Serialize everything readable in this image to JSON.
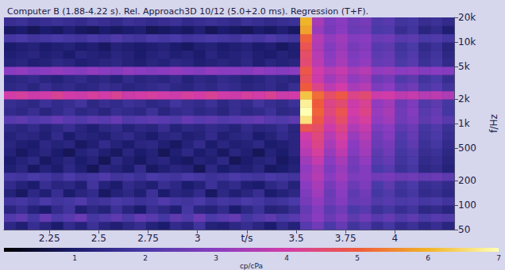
{
  "chart_data": {
    "type": "heatmap",
    "title": "Computer B (1.88-4.22 s). Rel. Approach3D 10/12 (5.0+2.0 ms). Regression (T+F).",
    "xlim": [
      2.02,
      4.3
    ],
    "xticks": [
      2.25,
      2.5,
      2.75,
      3,
      {
        "value": 3.25,
        "label": "t/s"
      },
      3.5,
      3.75,
      4
    ],
    "ylim": [
      50,
      20000
    ],
    "yticks": [
      50,
      100,
      200,
      500,
      {
        "value": 1000,
        "label": "1k"
      },
      {
        "value": 2000,
        "label": "2k"
      },
      {
        "value": 5000,
        "label": "5k"
      },
      {
        "value": 10000,
        "label": "10k"
      },
      {
        "value": 20000,
        "label": "20k"
      }
    ],
    "ylabel": "f/Hz",
    "log": "y",
    "grid": false,
    "x_edges": [
      2.02,
      2.08,
      2.14,
      2.2,
      2.26,
      2.32,
      2.38,
      2.44,
      2.5,
      2.56,
      2.62,
      2.68,
      2.74,
      2.8,
      2.86,
      2.92,
      2.98,
      3.04,
      3.1,
      3.16,
      3.22,
      3.28,
      3.34,
      3.4,
      3.46,
      3.52,
      3.58,
      3.64,
      3.7,
      3.76,
      3.82,
      3.88,
      3.94,
      4.0,
      4.06,
      4.12,
      4.18,
      4.24,
      4.3
    ],
    "y_edges": [
      50,
      63,
      79,
      100,
      126,
      158,
      200,
      251,
      316,
      398,
      500,
      630,
      794,
      1000,
      1259,
      1585,
      1995,
      2512,
      3162,
      3981,
      5012,
      6310,
      7943,
      10000,
      12589,
      15849,
      20000
    ],
    "values": [
      [
        1.4,
        1.1,
        1.6,
        1.3,
        1.0,
        1.5,
        1.2,
        1.7,
        1.3,
        1.1,
        1.4,
        1.6,
        1.2,
        1.0,
        1.5,
        1.3,
        1.8,
        1.2,
        1.1,
        1.4,
        1.6,
        1.3,
        1.0,
        1.5,
        1.2,
        2.2,
        2.6,
        2.0,
        2.4,
        1.8,
        2.1,
        1.6,
        1.9,
        1.5,
        1.7,
        1.4,
        1.6,
        1.3
      ],
      [
        2.1,
        2.3,
        1.9,
        2.4,
        2.0,
        2.2,
        2.5,
        1.9,
        2.1,
        2.3,
        2.0,
        2.4,
        2.2,
        1.9,
        2.3,
        2.1,
        2.5,
        2.0,
        2.2,
        2.4,
        1.9,
        2.1,
        2.3,
        2.0,
        2.2,
        2.6,
        3.0,
        2.5,
        2.8,
        2.3,
        2.6,
        2.2,
        2.4,
        2.1,
        2.3,
        2.0,
        2.2,
        2.1
      ],
      [
        1.3,
        1.6,
        1.2,
        1.0,
        1.5,
        1.8,
        1.1,
        1.4,
        1.2,
        1.7,
        1.3,
        1.0,
        1.6,
        1.4,
        1.1,
        1.9,
        1.3,
        1.2,
        1.5,
        1.0,
        1.4,
        1.7,
        1.2,
        1.3,
        1.6,
        2.4,
        2.9,
        2.3,
        2.6,
        2.0,
        2.2,
        1.7,
        1.9,
        1.6,
        1.8,
        1.4,
        1.5,
        1.3
      ],
      [
        1.8,
        1.9,
        1.7,
        2.0,
        1.8,
        1.9,
        2.1,
        1.7,
        1.8,
        2.0,
        1.9,
        1.7,
        1.8,
        2.1,
        1.9,
        1.8,
        2.0,
        1.7,
        1.9,
        1.8,
        2.0,
        1.9,
        1.7,
        1.8,
        2.0,
        2.7,
        3.1,
        2.6,
        2.9,
        2.4,
        2.5,
        2.1,
        2.2,
        2.0,
        2.1,
        1.9,
        2.0,
        1.8
      ],
      [
        1.2,
        0.9,
        1.4,
        1.1,
        1.6,
        1.0,
        1.3,
        1.5,
        0.9,
        1.2,
        1.4,
        1.1,
        1.7,
        1.0,
        1.3,
        1.2,
        1.5,
        0.9,
        1.4,
        1.1,
        1.3,
        1.6,
        1.0,
        1.2,
        1.4,
        2.8,
        3.3,
        2.5,
        3.0,
        2.3,
        2.6,
        1.9,
        2.1,
        1.7,
        1.9,
        1.5,
        1.6,
        1.4
      ],
      [
        1.5,
        1.2,
        1.0,
        1.6,
        1.3,
        1.4,
        1.1,
        1.8,
        1.2,
        1.0,
        1.5,
        1.3,
        1.1,
        1.6,
        1.4,
        1.0,
        1.2,
        1.7,
        1.3,
        1.5,
        1.1,
        1.0,
        1.4,
        1.6,
        1.2,
        3.0,
        3.4,
        2.7,
        3.1,
        2.5,
        2.8,
        2.0,
        2.3,
        1.8,
        2.0,
        1.6,
        1.7,
        1.5
      ],
      [
        1.9,
        1.8,
        2.0,
        1.9,
        1.7,
        2.0,
        1.8,
        1.9,
        2.1,
        1.8,
        1.9,
        1.7,
        2.0,
        1.9,
        1.8,
        2.0,
        1.9,
        1.7,
        1.8,
        2.0,
        1.9,
        1.8,
        2.0,
        1.9,
        1.8,
        3.2,
        3.6,
        3.0,
        3.3,
        2.8,
        2.9,
        2.6,
        2.7,
        2.5,
        2.6,
        2.4,
        2.5,
        2.3
      ],
      [
        1.1,
        1.3,
        0.9,
        1.2,
        1.0,
        1.4,
        1.1,
        0.8,
        1.3,
        1.2,
        1.0,
        1.5,
        0.9,
        1.1,
        1.3,
        1.2,
        0.8,
        1.4,
        1.0,
        1.2,
        1.1,
        1.3,
        0.9,
        1.0,
        1.2,
        3.1,
        3.5,
        2.8,
        3.2,
        2.6,
        2.9,
        2.0,
        2.2,
        1.7,
        1.9,
        1.4,
        1.5,
        1.2
      ],
      [
        1.0,
        1.2,
        1.4,
        0.9,
        1.1,
        1.3,
        1.0,
        1.2,
        0.8,
        1.4,
        1.1,
        0.9,
        1.2,
        1.3,
        1.0,
        0.9,
        1.2,
        1.1,
        1.4,
        0.8,
        1.0,
        1.2,
        1.3,
        0.9,
        1.1,
        3.3,
        3.8,
        3.0,
        3.4,
        2.7,
        3.1,
        2.2,
        2.4,
        1.8,
        2.0,
        1.5,
        1.6,
        1.3
      ],
      [
        1.2,
        0.9,
        1.1,
        1.3,
        1.0,
        0.8,
        1.2,
        1.4,
        1.1,
        0.9,
        1.3,
        1.0,
        1.2,
        0.8,
        1.1,
        1.4,
        1.0,
        1.2,
        0.9,
        1.3,
        1.1,
        0.8,
        1.2,
        1.0,
        1.3,
        3.6,
        4.1,
        3.2,
        3.7,
        2.9,
        3.3,
        2.3,
        2.6,
        1.9,
        2.1,
        1.6,
        1.7,
        1.4
      ],
      [
        1.3,
        1.1,
        1.0,
        1.4,
        1.2,
        1.3,
        0.9,
        1.1,
        1.5,
        1.2,
        1.0,
        1.3,
        1.4,
        1.1,
        0.9,
        1.2,
        1.5,
        1.0,
        1.3,
        1.1,
        1.2,
        1.4,
        1.0,
        1.1,
        1.3,
        3.8,
        4.3,
        3.4,
        3.9,
        3.0,
        3.4,
        2.5,
        2.7,
        2.0,
        2.3,
        1.7,
        1.9,
        1.5
      ],
      [
        1.2,
        1.4,
        1.3,
        1.1,
        1.5,
        1.0,
        1.3,
        1.2,
        1.1,
        1.4,
        1.5,
        1.2,
        1.0,
        1.3,
        1.4,
        1.1,
        1.2,
        1.5,
        1.1,
        1.3,
        1.4,
        1.0,
        1.2,
        1.5,
        1.3,
        4.0,
        4.4,
        3.6,
        4.1,
        3.2,
        3.6,
        2.6,
        2.9,
        2.1,
        2.4,
        1.8,
        2.0,
        1.6
      ],
      [
        1.4,
        1.3,
        1.5,
        1.2,
        1.4,
        1.6,
        1.3,
        1.1,
        1.4,
        1.5,
        1.2,
        1.4,
        1.3,
        1.6,
        1.2,
        1.4,
        1.3,
        1.5,
        1.4,
        1.2,
        1.5,
        1.3,
        1.4,
        1.6,
        1.3,
        4.8,
        4.6,
        3.9,
        4.3,
        3.5,
        3.8,
        2.8,
        3.0,
        2.3,
        2.5,
        1.9,
        2.1,
        1.7
      ],
      [
        2.2,
        2.3,
        2.1,
        2.2,
        2.4,
        2.2,
        2.1,
        2.3,
        2.2,
        2.4,
        2.1,
        2.2,
        2.3,
        2.2,
        2.1,
        2.4,
        2.2,
        2.3,
        2.1,
        2.2,
        2.3,
        2.4,
        2.2,
        2.1,
        2.3,
        6.6,
        4.9,
        4.2,
        4.6,
        3.8,
        4.1,
        3.1,
        3.3,
        2.6,
        2.8,
        2.3,
        2.5,
        2.2
      ],
      [
        1.5,
        1.4,
        1.6,
        1.3,
        1.5,
        1.7,
        1.4,
        1.5,
        1.3,
        1.6,
        1.5,
        1.4,
        1.7,
        1.3,
        1.5,
        1.6,
        1.4,
        1.5,
        1.3,
        1.6,
        1.4,
        1.5,
        1.7,
        1.4,
        1.5,
        7.0,
        5.1,
        4.4,
        4.8,
        4.0,
        4.3,
        3.2,
        3.4,
        2.6,
        2.9,
        2.2,
        2.4,
        1.9
      ],
      [
        1.6,
        1.5,
        1.4,
        1.7,
        1.5,
        1.6,
        1.8,
        1.4,
        1.6,
        1.5,
        1.7,
        1.6,
        1.4,
        1.5,
        1.8,
        1.6,
        1.5,
        1.7,
        1.4,
        1.6,
        1.5,
        1.8,
        1.6,
        1.5,
        1.7,
        6.8,
        5.0,
        4.3,
        4.5,
        3.9,
        4.2,
        3.1,
        3.3,
        2.5,
        2.8,
        2.1,
        2.3,
        1.9
      ],
      [
        4.0,
        4.1,
        3.9,
        4.0,
        4.2,
        4.0,
        3.9,
        4.1,
        4.0,
        4.2,
        3.9,
        4.0,
        4.1,
        4.0,
        3.9,
        4.1,
        4.0,
        4.2,
        4.0,
        3.9,
        4.1,
        4.0,
        4.2,
        3.9,
        4.0,
        6.2,
        5.2,
        4.6,
        4.9,
        4.3,
        4.5,
        3.9,
        4.0,
        3.7,
        3.8,
        3.6,
        3.7,
        3.5
      ],
      [
        1.4,
        1.5,
        1.3,
        1.6,
        1.4,
        1.5,
        1.3,
        1.4,
        1.6,
        1.5,
        1.3,
        1.4,
        1.5,
        1.6,
        1.4,
        1.3,
        1.5,
        1.4,
        1.6,
        1.5,
        1.3,
        1.4,
        1.5,
        1.3,
        1.6,
        5.0,
        4.3,
        3.7,
        4.0,
        3.4,
        3.6,
        2.8,
        3.0,
        2.4,
        2.6,
        2.0,
        2.2,
        1.8
      ],
      [
        1.3,
        1.4,
        1.5,
        1.3,
        1.2,
        1.4,
        1.5,
        1.3,
        1.4,
        1.2,
        1.5,
        1.3,
        1.4,
        1.3,
        1.5,
        1.2,
        1.4,
        1.3,
        1.5,
        1.4,
        1.2,
        1.3,
        1.5,
        1.4,
        1.3,
        4.7,
        3.9,
        3.3,
        3.6,
        3.1,
        3.3,
        2.5,
        2.7,
        2.1,
        2.3,
        1.8,
        2.0,
        1.6
      ],
      [
        3.0,
        3.1,
        2.9,
        3.0,
        3.1,
        3.0,
        2.9,
        3.1,
        3.0,
        2.9,
        3.1,
        3.0,
        2.9,
        3.0,
        3.1,
        3.0,
        2.9,
        3.1,
        3.0,
        3.0,
        2.9,
        3.1,
        3.0,
        2.9,
        3.0,
        4.9,
        4.0,
        3.6,
        3.8,
        3.4,
        3.6,
        3.1,
        3.2,
        3.0,
        3.1,
        2.9,
        3.0,
        2.9
      ],
      [
        1.2,
        1.3,
        1.1,
        1.2,
        1.4,
        1.3,
        1.1,
        1.2,
        1.3,
        1.4,
        1.2,
        1.1,
        1.3,
        1.2,
        1.4,
        1.3,
        1.1,
        1.2,
        1.3,
        1.2,
        1.4,
        1.1,
        1.3,
        1.2,
        1.3,
        4.5,
        3.7,
        3.1,
        3.4,
        2.9,
        3.1,
        2.4,
        2.5,
        2.0,
        2.2,
        1.7,
        1.9,
        1.5
      ],
      [
        1.1,
        1.2,
        1.3,
        1.1,
        1.2,
        1.0,
        1.3,
        1.2,
        1.1,
        1.3,
        1.2,
        1.0,
        1.2,
        1.3,
        1.1,
        1.2,
        1.0,
        1.3,
        1.1,
        1.2,
        1.3,
        1.1,
        1.0,
        1.2,
        1.1,
        4.6,
        3.6,
        3.0,
        3.3,
        2.8,
        3.0,
        2.3,
        2.4,
        1.9,
        2.1,
        1.6,
        1.8,
        1.4
      ],
      [
        1.0,
        1.1,
        1.2,
        1.0,
        1.1,
        1.2,
        1.0,
        1.1,
        0.9,
        1.2,
        1.1,
        1.0,
        1.1,
        1.2,
        1.0,
        0.9,
        1.1,
        1.2,
        1.0,
        1.1,
        1.2,
        1.0,
        1.1,
        0.9,
        1.1,
        4.8,
        3.5,
        2.9,
        3.2,
        2.7,
        2.9,
        2.2,
        2.3,
        1.8,
        2.0,
        1.5,
        1.7,
        1.3
      ],
      [
        1.9,
        2.0,
        1.8,
        1.9,
        2.0,
        1.9,
        1.8,
        2.0,
        1.9,
        2.1,
        1.9,
        1.8,
        2.0,
        1.9,
        2.0,
        1.8,
        1.9,
        2.0,
        1.9,
        1.8,
        2.0,
        1.9,
        2.1,
        1.9,
        1.8,
        5.1,
        3.6,
        3.1,
        3.3,
        2.9,
        3.0,
        2.5,
        2.6,
        2.2,
        2.3,
        2.0,
        2.1,
        1.9
      ],
      [
        0.9,
        1.0,
        0.8,
        1.0,
        0.9,
        1.1,
        0.9,
        0.8,
        1.0,
        0.9,
        1.0,
        1.1,
        0.8,
        0.9,
        1.0,
        0.9,
        1.1,
        0.8,
        1.0,
        0.9,
        0.8,
        1.0,
        0.9,
        1.1,
        0.9,
        5.8,
        3.2,
        2.7,
        3.0,
        2.5,
        2.6,
        2.0,
        2.1,
        1.6,
        1.8,
        1.3,
        1.5,
        1.1
      ],
      [
        1.6,
        1.7,
        1.5,
        1.6,
        1.7,
        1.6,
        1.5,
        1.7,
        1.6,
        1.5,
        1.7,
        1.6,
        1.5,
        1.6,
        1.7,
        1.5,
        1.6,
        1.7,
        1.6,
        1.5,
        1.7,
        1.6,
        1.5,
        1.6,
        1.7,
        6.0,
        3.4,
        2.8,
        3.0,
        2.6,
        2.7,
        2.1,
        2.2,
        1.8,
        1.9,
        1.6,
        1.7,
        1.5
      ]
    ],
    "colorbar": {
      "range": [
        0,
        7
      ],
      "ticks": [
        1,
        2,
        3,
        4,
        5,
        6,
        7
      ],
      "label": "cp/cPa"
    }
  }
}
